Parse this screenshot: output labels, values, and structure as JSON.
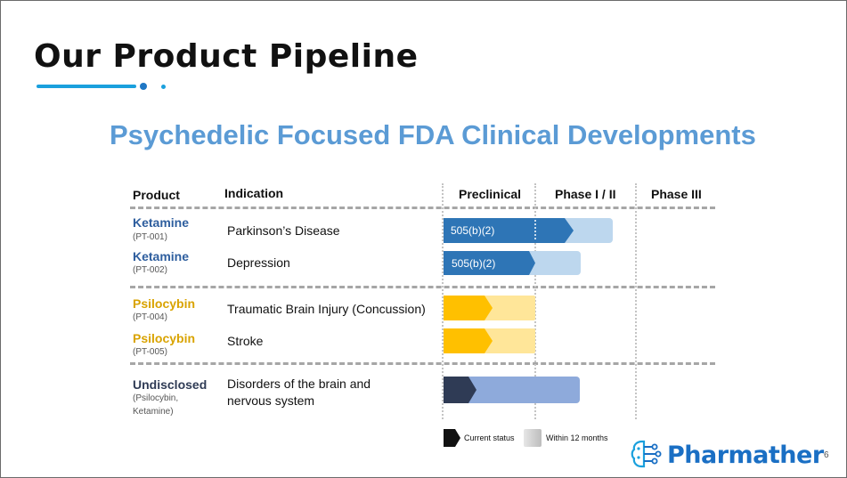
{
  "slide": {
    "title": "Our Product Pipeline",
    "subtitle": "Psychedelic Focused FDA Clinical Developments",
    "page_number": "6"
  },
  "table": {
    "headers": {
      "product": "Product",
      "indication": "Indication",
      "preclinical": "Preclinical",
      "phase1_2": "Phase I / II",
      "phase3": "Phase III"
    },
    "rows": [
      {
        "product": "Ketamine",
        "code": "(PT-001)",
        "indication": "Parkinson’s Disease",
        "bar_label": "505(b)(2)",
        "product_color": "#2e5e9e",
        "current_color": "#2e75b6",
        "target_color": "#bdd7ee"
      },
      {
        "product": "Ketamine",
        "code": "(PT-002)",
        "indication": "Depression",
        "bar_label": "505(b)(2)",
        "product_color": "#2e5e9e",
        "current_color": "#2e75b6",
        "target_color": "#bdd7ee"
      },
      {
        "product": "Psilocybin",
        "code": "(PT-004)",
        "indication": "Traumatic Brain Injury (Concussion)",
        "bar_label": "",
        "product_color": "#d9a300",
        "current_color": "#ffc000",
        "target_color": "#ffe699"
      },
      {
        "product": "Psilocybin",
        "code": "(PT-005)",
        "indication": "Stroke",
        "bar_label": "",
        "product_color": "#d9a300",
        "current_color": "#ffc000",
        "target_color": "#ffe699"
      },
      {
        "product": "Undisclosed",
        "code_line1": "(Psilocybin,",
        "code_line2": "Ketamine)",
        "indication_line1": "Disorders of the brain and",
        "indication_line2": "nervous system",
        "bar_label": "",
        "product_color": "#2f3b55",
        "current_color": "#2f3b55",
        "target_color": "#8eaadb"
      }
    ]
  },
  "legend": {
    "current_status": "Current status",
    "within_12_months": "Within 12 months"
  },
  "logo": {
    "text": "Pharmather",
    "icon": "brain-circuit-icon",
    "color": "#1a6fc4"
  }
}
